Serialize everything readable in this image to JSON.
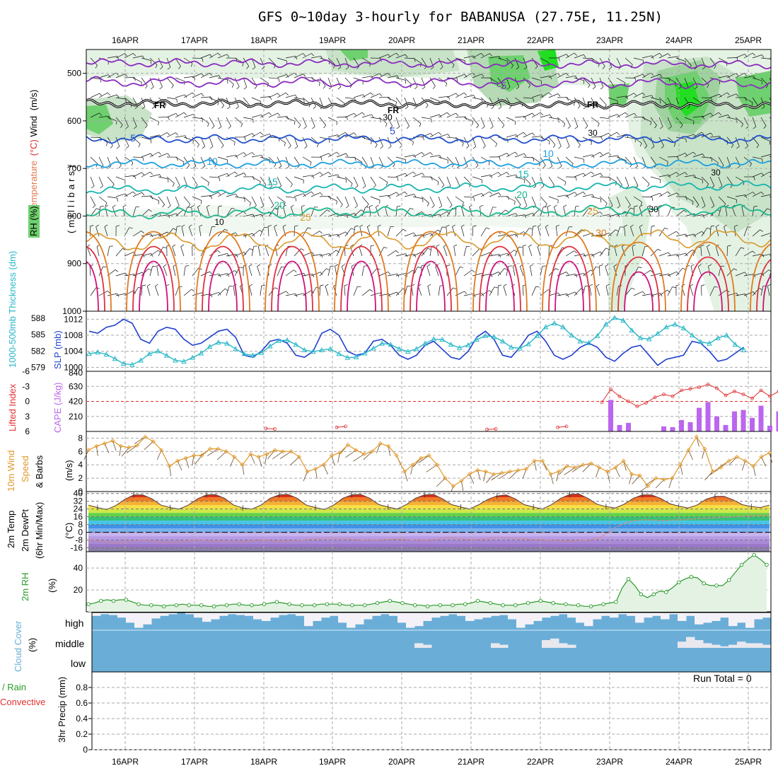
{
  "title": "GFS 0~10day 3-hourly for BABANUSA (27.75E, 11.25N)",
  "colors": {
    "rh_fill": "#6fd06f",
    "rh_light": "#e4f2e4",
    "rh_strong": "#22dd22",
    "temp_cold": "#8a2bbf",
    "temp_5": "#1f4fcc",
    "temp_10": "#1ea0e0",
    "temp_15": "#16b5b0",
    "temp_20": "#18b890",
    "temp_25": "#d99a2a",
    "temp_30": "#e07a20",
    "temp_hot": "#e03040",
    "temp_hotter": "#d0107a",
    "slp": "#1f3fd0",
    "thick": "#2ab8c8",
    "li": "#e03030",
    "cape": "#bb66ee",
    "wind": "#e0982a",
    "rh2m": "#2a9a2a",
    "cloud": "#6aaed8",
    "dewpt": "#d08a8a"
  },
  "chart_data": [
    {
      "type": "area",
      "name": "cross-section",
      "ylabel_parts": [
        "Temperature",
        "(°C)",
        "Wind",
        "(m/s)"
      ],
      "ylabel_sub": "(millibars)",
      "rh_label": "RH (%)",
      "yticks": [
        500,
        600,
        700,
        800,
        900,
        1000
      ],
      "ylim": [
        450,
        1000
      ],
      "freezing_label": "FR",
      "contour_labels": [
        "5",
        "5",
        "10",
        "15",
        "20",
        "25",
        "-5",
        "5",
        "10",
        "15",
        "20",
        "25",
        "30"
      ],
      "rh_labels": [
        "30",
        "10",
        "30",
        "30",
        "30"
      ],
      "x_days": [
        "16APR",
        "17APR",
        "18APR",
        "19APR",
        "20APR",
        "21APR",
        "22APR",
        "23APR",
        "24APR",
        "25APR"
      ]
    },
    {
      "type": "line",
      "name": "slp-thickness",
      "left_label": "1000-500mb Thickness (dm)",
      "right_label": "SLP (mb)",
      "thick_ticks": [
        579,
        582,
        585,
        588
      ],
      "slp_ticks": [
        1000,
        1004,
        1008,
        1012
      ],
      "slp_series": [
        1009,
        1008.5,
        1010,
        1010.5,
        1012,
        1011,
        1007,
        1006,
        1009,
        1010,
        1009.5,
        1007,
        1005.5,
        1006,
        1007.5,
        1009,
        1009.5,
        1007.5,
        1003,
        1002.5,
        1004,
        1006.5,
        1007,
        1006,
        1003,
        1002.5,
        1004,
        1008.5,
        1009.5,
        1008,
        1004,
        1003,
        1003.5,
        1006.5,
        1007,
        1005.5,
        1003,
        1002,
        1003,
        1005.5,
        1006.5,
        1004.5,
        1002.5,
        1002,
        1004,
        1007.5,
        1009,
        1007,
        1003,
        1002.5,
        1005,
        1008,
        1009,
        1006.5,
        1003,
        1002,
        1003,
        1005,
        1006,
        1005,
        1002.5,
        1001.5,
        1003.5,
        1005,
        1005.5,
        1003,
        1000.5,
        1002,
        1002.5,
        1003,
        1006.5,
        1006,
        1004,
        1001.5,
        1002,
        1003.5,
        1005
      ],
      "thick_series": [
        581.5,
        581.8,
        581.4,
        580.6,
        579.7,
        579.5,
        580.3,
        581.5,
        582.0,
        581.2,
        580.3,
        580.1,
        580.8,
        581.6,
        582.8,
        583.6,
        583.4,
        582.4,
        581.5,
        581.2,
        581.7,
        582.9,
        583.9,
        584.0,
        583.2,
        582.2,
        581.9,
        582.2,
        582.4,
        581.5,
        580.8,
        580.9,
        581.6,
        582.5,
        583.4,
        583.2,
        582.4,
        581.9,
        582.4,
        583.4,
        584.2,
        584.1,
        583.2,
        582.6,
        583.1,
        584.1,
        584.8,
        584.6,
        583.8,
        582.7,
        582.5,
        583.3,
        584.8,
        586.4,
        587.1,
        586.4,
        584.9,
        583.8,
        583.5,
        584.8,
        586.9,
        588.1,
        587.6,
        585.8,
        584.4,
        584.2,
        585.2,
        586.4,
        586.9,
        586.2,
        584.9,
        583.7,
        583.4,
        584.4,
        584.9,
        583.2,
        582.2
      ]
    },
    {
      "type": "bar",
      "name": "cape-li",
      "left_label": "Lifted Index",
      "right_label": "CAPE (J/kg)",
      "li_ticks": [
        "-6",
        "-3",
        "0",
        "3",
        "6"
      ],
      "cape_ticks": [
        "840",
        "630",
        "420",
        "210"
      ],
      "cape_ylim": [
        0,
        840
      ],
      "li_ylim": [
        -6,
        6
      ],
      "cape_bars": [
        {
          "i": 59,
          "v": 440
        },
        {
          "i": 60,
          "v": 90
        },
        {
          "i": 61,
          "v": 120
        },
        {
          "i": 65,
          "v": 70
        },
        {
          "i": 66,
          "v": 60
        },
        {
          "i": 67,
          "v": 160
        },
        {
          "i": 68,
          "v": 130
        },
        {
          "i": 69,
          "v": 330
        },
        {
          "i": 70,
          "v": 410
        },
        {
          "i": 71,
          "v": 210
        },
        {
          "i": 72,
          "v": 90
        },
        {
          "i": 73,
          "v": 280
        },
        {
          "i": 74,
          "v": 300
        },
        {
          "i": 75,
          "v": 190
        },
        {
          "i": 76,
          "v": 360
        },
        {
          "i": 77,
          "v": 80
        },
        {
          "i": 78,
          "v": 280
        },
        {
          "i": 79,
          "v": 200
        }
      ],
      "li_series": [
        {
          "i": 20,
          "v": 5.4
        },
        {
          "i": 21,
          "v": 5.5
        },
        {
          "i": 28,
          "v": 5.2
        },
        {
          "i": 29,
          "v": 5.0
        },
        {
          "i": 45,
          "v": 5.6
        },
        {
          "i": 46,
          "v": 5.5
        },
        {
          "i": 53,
          "v": 5.2
        },
        {
          "i": 54,
          "v": 5.0
        },
        {
          "i": 58,
          "v": 0.2
        },
        {
          "i": 59,
          "v": -2.4
        },
        {
          "i": 60,
          "v": -1.0
        },
        {
          "i": 61,
          "v": 0.0
        },
        {
          "i": 62,
          "v": 1.0
        },
        {
          "i": 63,
          "v": 0.3
        },
        {
          "i": 64,
          "v": -0.8
        },
        {
          "i": 65,
          "v": -1.4
        },
        {
          "i": 66,
          "v": -1.0
        },
        {
          "i": 67,
          "v": -2.2
        },
        {
          "i": 68,
          "v": -2.5
        },
        {
          "i": 69,
          "v": -2.8
        },
        {
          "i": 70,
          "v": -3.4
        },
        {
          "i": 71,
          "v": -2.6
        },
        {
          "i": 72,
          "v": -1.2
        },
        {
          "i": 73,
          "v": -2.0
        },
        {
          "i": 74,
          "v": -1.4
        },
        {
          "i": 75,
          "v": -0.6
        },
        {
          "i": 76,
          "v": -2.2
        },
        {
          "i": 77,
          "v": -1.0
        },
        {
          "i": 78,
          "v": -2.0
        },
        {
          "i": 79,
          "v": -3.8
        }
      ]
    },
    {
      "type": "line",
      "name": "wind10m",
      "ylabel_parts": [
        "10m Wind",
        "Speed",
        "& Barbs"
      ],
      "yunit": "(m/s)",
      "yticks": [
        0,
        2,
        4,
        6,
        8
      ],
      "ylim": [
        0,
        9
      ],
      "series": [
        6.2,
        6.8,
        7.2,
        7.6,
        6.8,
        6.6,
        6.9,
        8.2,
        7.5,
        6.2,
        3.8,
        4.6,
        5.0,
        5.4,
        5.4,
        6.4,
        6.4,
        6.0,
        5.2,
        4.0,
        5.6,
        5.2,
        5.6,
        6.2,
        6.0,
        6.0,
        5.2,
        3.0,
        3.4,
        4.0,
        5.4,
        5.8,
        7.0,
        6.2,
        5.6,
        6.0,
        7.2,
        6.8,
        5.4,
        3.0,
        4.0,
        5.0,
        5.4,
        4.0,
        2.0,
        0.8,
        1.6,
        2.6,
        3.2,
        3.0,
        2.6,
        2.8,
        3.0,
        3.2,
        3.4,
        4.6,
        4.6,
        2.6,
        3.0,
        3.8,
        3.6,
        4.0,
        4.2,
        3.6,
        3.0,
        3.6,
        4.6,
        2.6,
        2.4,
        0.8,
        2.0,
        1.8,
        2.0,
        4.0,
        6.2,
        8.2,
        6.4,
        3.0,
        3.6,
        4.6,
        5.2,
        4.6,
        3.8,
        5.2,
        5.8
      ]
    },
    {
      "type": "area",
      "name": "temp2m",
      "ylabel_parts": [
        "2m Temp",
        "2m DewPt",
        "(6hr Min/Max)"
      ],
      "yunit": "(°C)",
      "yticks": [
        -16,
        -8,
        0,
        8,
        16,
        24,
        32,
        40
      ],
      "ylim": [
        -20,
        42
      ],
      "temp_series": [
        28.0,
        25.5,
        23.5,
        27.5,
        34.0,
        38.5,
        38.5,
        34.5,
        28.0,
        25.5,
        24.0,
        28.0,
        34.5,
        38.5,
        38.8,
        35.0,
        28.0,
        25.0,
        24.0,
        28.0,
        35.0,
        38.5,
        39.0,
        35.0,
        28.0,
        25.5,
        23.5,
        28.0,
        35.0,
        38.5,
        39.0,
        35.0,
        28.5,
        26.0,
        24.0,
        28.5,
        35.0,
        38.5,
        39.0,
        34.5,
        28.5,
        26.0,
        24.0,
        28.5,
        34.0,
        37.5,
        38.5,
        34.5,
        28.5,
        26.0,
        24.0,
        28.5,
        35.0,
        39.0,
        39.5,
        35.0,
        29.0,
        26.5,
        25.0,
        29.0,
        35.0,
        38.5,
        38.5,
        35.0,
        29.5,
        27.0,
        25.0,
        28.0,
        34.0,
        37.0,
        37.0,
        33.5,
        28.5,
        26.5,
        25.5,
        28.0
      ],
      "dew_series": [
        -8,
        -9,
        -10,
        -11,
        -10,
        -9,
        -8,
        -9,
        -10,
        -10.5,
        -10,
        -9,
        -8,
        -8.5,
        -9,
        -9.5,
        -10,
        -10,
        -9,
        -8,
        -8.5,
        -9,
        -9.5,
        -9,
        -8,
        -7,
        -6.5,
        -6,
        -6.5,
        -7,
        -7.5,
        -8,
        -8,
        -7.5,
        -7,
        -7,
        -8,
        -8.5,
        -8,
        -7,
        -5.5,
        -6,
        -7,
        -7.5,
        -7,
        -6,
        -5.5,
        -6,
        -6.5,
        -7,
        -7.5,
        -8,
        -8.5,
        -9,
        -9,
        -8.5,
        -8,
        -6,
        0,
        6,
        10,
        12,
        13,
        12.5,
        12,
        12.5,
        13,
        13.5,
        14,
        14.5,
        15,
        15.5,
        16,
        16.5,
        17,
        17.5,
        18
      ]
    },
    {
      "type": "area",
      "name": "rh2m",
      "ylabel": "2m RH",
      "yunit": "(%)",
      "yticks": [
        20,
        40
      ],
      "ylim": [
        0,
        55
      ],
      "series": [
        7,
        8,
        10,
        11,
        10,
        11,
        11,
        9,
        7,
        6,
        6,
        6,
        5,
        6,
        6,
        7,
        6,
        6,
        6,
        5,
        5,
        6,
        6,
        7,
        7,
        6,
        6,
        6,
        7,
        8,
        9,
        8,
        7,
        6,
        6,
        6,
        6,
        7,
        7,
        7,
        7,
        6,
        6,
        6,
        6,
        7,
        8,
        9,
        10,
        9,
        8,
        7,
        6,
        6,
        5,
        6,
        6,
        6,
        6,
        7,
        7,
        8,
        10,
        9,
        8,
        7,
        6,
        6,
        6,
        7,
        8,
        9,
        10,
        9,
        8,
        7,
        7,
        6,
        6,
        5,
        5,
        6,
        7,
        8,
        9,
        22,
        30,
        24,
        16,
        13,
        16,
        19,
        18,
        22,
        27,
        30,
        32,
        31,
        26,
        24,
        24,
        24,
        29,
        36,
        43,
        48,
        52,
        48,
        43
      ]
    },
    {
      "type": "heatmap",
      "name": "cloud-cover",
      "ylabel": "Cloud Cover",
      "yunit": "(%)",
      "rows": [
        "high",
        "middle",
        "low"
      ]
    },
    {
      "type": "bar",
      "name": "precip",
      "ylabel_parts": [
        "3hr Precip (mm)",
        "Total / Rain",
        "Convective"
      ],
      "yticks": [
        "0",
        "0.2",
        "0.4",
        "0.6",
        "0.8"
      ],
      "ylim": [
        0,
        1
      ],
      "run_total": "Run Total = 0"
    }
  ]
}
